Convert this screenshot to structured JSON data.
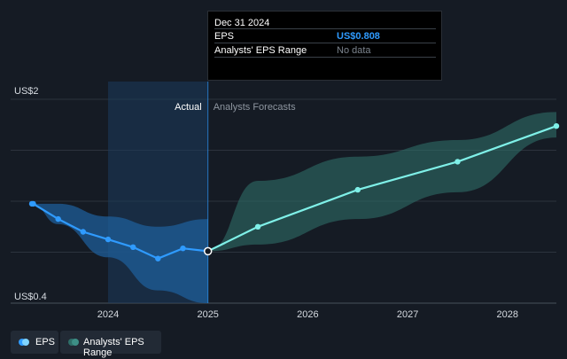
{
  "tooltip": {
    "date": "Dec 31 2024",
    "rows": [
      {
        "label": "EPS",
        "value": "US$0.808"
      },
      {
        "label": "Analysts' EPS Range",
        "value": "No data"
      }
    ]
  },
  "regions": {
    "actual": "Actual",
    "forecast": "Analysts Forecasts"
  },
  "legend": [
    {
      "label": "EPS",
      "color": "#2f9bff"
    },
    {
      "label": "Analysts' EPS Range",
      "color": "#2e8f83"
    }
  ],
  "colors": {
    "actual_line": "#2f9bff",
    "forecast_line": "#7ff0e8",
    "forecast_band": "#2e6e68",
    "actual_band": "#1d5d98"
  },
  "chart_data": {
    "type": "line",
    "y_tick_labels": [
      "US$2",
      "US$0.4"
    ],
    "ylim": [
      0.4,
      2.0
    ],
    "xlim": [
      2023.0,
      2028.5
    ],
    "x_tick_labels": [
      "2024",
      "2025",
      "2026",
      "2027",
      "2028"
    ],
    "x_ticks": [
      2024,
      2025,
      2026,
      2027,
      2028
    ],
    "grid": true,
    "series": [
      {
        "name": "EPS",
        "x": [
          2023.0,
          2023.25,
          2023.5,
          2023.75,
          2024.0,
          2024.25,
          2024.5,
          2024.75,
          2025.0
        ],
        "y": [
          1.18,
          1.18,
          1.06,
          0.96,
          0.9,
          0.84,
          0.75,
          0.83,
          0.808
        ]
      },
      {
        "name": "EPS forecast",
        "x": [
          2025.0,
          2025.5,
          2026.5,
          2027.5,
          2028.5
        ],
        "y": [
          0.808,
          1.0,
          1.29,
          1.51,
          1.79
        ]
      }
    ],
    "range_actual": {
      "x": [
        2023.0,
        2023.5,
        2024.0,
        2024.5,
        2025.0
      ],
      "low": [
        1.18,
        1.02,
        0.76,
        0.5,
        0.4
      ],
      "high": [
        1.18,
        1.18,
        1.08,
        1.0,
        1.06
      ]
    },
    "range_forecast": {
      "x": [
        2025.0,
        2025.5,
        2026.5,
        2027.5,
        2028.5
      ],
      "low": [
        0.808,
        0.86,
        1.06,
        1.27,
        1.7
      ],
      "high": [
        0.808,
        1.36,
        1.55,
        1.68,
        1.9
      ]
    },
    "highlight_range": [
      2024.0,
      2025.0
    ]
  }
}
